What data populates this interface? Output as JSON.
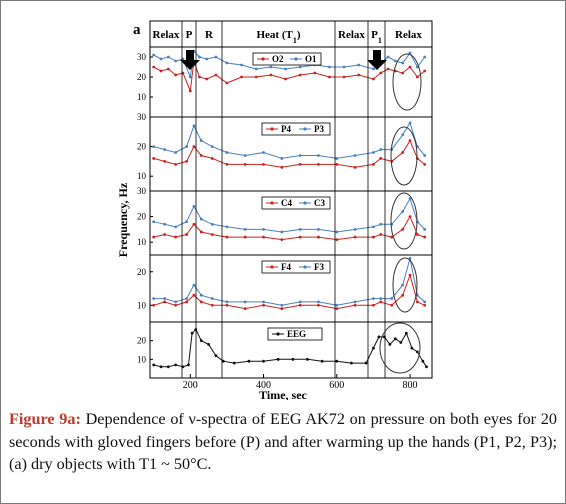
{
  "figure_label": "a",
  "phases": [
    {
      "label": "Relax",
      "sub": ""
    },
    {
      "label": "P",
      "sub": ""
    },
    {
      "label": "R",
      "sub": ""
    },
    {
      "label": "Heat (T",
      "sub": "1",
      "after": ")"
    },
    {
      "label": "Relax",
      "sub": ""
    },
    {
      "label": "P",
      "sub": "1"
    },
    {
      "label": "Relax",
      "sub": ""
    }
  ],
  "ylabel": "Frequency, Hz",
  "xlabel": "Time, sec",
  "x_ticks": [
    "200",
    "400",
    "600",
    "800"
  ],
  "caption": {
    "label": "Figure 9a:",
    "text": " Dependence of ν-spectra of EEG AK72 on pressure on both eyes for 20 seconds with gloved fingers before (P) and after warming up the hands (P1, P2, P3); (a) dry objects with T1 ~ 50°C."
  },
  "colors": {
    "red": "#cc2222",
    "blue": "#4a80c0",
    "black": "#111111"
  },
  "chart_data": [
    {
      "type": "line",
      "panel": 1,
      "x_range": [
        90,
        860
      ],
      "ylim": [
        0,
        35
      ],
      "y_ticks": [
        "10",
        "20",
        "30"
      ],
      "series": [
        {
          "name": "O2",
          "color": "red",
          "x": [
            100,
            120,
            140,
            160,
            180,
            200,
            210,
            225,
            245,
            270,
            300,
            340,
            380,
            420,
            460,
            500,
            540,
            580,
            620,
            660,
            700,
            720,
            740,
            760,
            780,
            800,
            820,
            840
          ],
          "y": [
            25,
            23,
            24,
            21,
            22,
            13,
            28,
            20,
            19,
            21,
            17,
            20,
            20,
            21,
            19,
            21,
            22,
            20,
            20,
            21,
            19,
            22,
            24,
            23,
            22,
            25,
            20,
            23
          ]
        },
        {
          "name": "O1",
          "color": "blue",
          "x": [
            100,
            120,
            140,
            160,
            180,
            200,
            210,
            225,
            245,
            270,
            300,
            340,
            380,
            420,
            460,
            500,
            540,
            580,
            620,
            660,
            700,
            720,
            740,
            760,
            780,
            800,
            820,
            840
          ],
          "y": [
            31,
            29,
            30,
            28,
            29,
            20,
            33,
            30,
            29,
            30,
            27,
            26,
            24,
            25,
            24,
            25,
            26,
            25,
            25,
            26,
            24,
            27,
            30,
            28,
            27,
            32,
            25,
            30
          ]
        }
      ]
    },
    {
      "type": "line",
      "panel": 2,
      "x_range": [
        90,
        860
      ],
      "ylim": [
        5,
        30
      ],
      "y_ticks": [
        "10",
        "20",
        "30"
      ],
      "series": [
        {
          "name": "P4",
          "color": "red",
          "x": [
            100,
            130,
            160,
            190,
            210,
            230,
            260,
            300,
            350,
            400,
            450,
            500,
            550,
            600,
            650,
            700,
            720,
            750,
            780,
            800,
            820,
            840
          ],
          "y": [
            16,
            15,
            14,
            15,
            20,
            17,
            16,
            14,
            14,
            14,
            13,
            14,
            14,
            14,
            13,
            14,
            16,
            15,
            18,
            22,
            16,
            14
          ]
        },
        {
          "name": "P3",
          "color": "blue",
          "x": [
            100,
            130,
            160,
            190,
            210,
            230,
            260,
            300,
            350,
            400,
            450,
            500,
            550,
            600,
            650,
            700,
            720,
            750,
            780,
            800,
            820,
            840
          ],
          "y": [
            20,
            19,
            18,
            20,
            27,
            22,
            20,
            18,
            17,
            18,
            16,
            17,
            17,
            16,
            17,
            18,
            19,
            19,
            24,
            28,
            20,
            17
          ]
        }
      ]
    },
    {
      "type": "line",
      "panel": 3,
      "x_range": [
        90,
        860
      ],
      "ylim": [
        5,
        30
      ],
      "y_ticks": [
        "10",
        "20",
        "30"
      ],
      "series": [
        {
          "name": "C4",
          "color": "red",
          "x": [
            100,
            130,
            160,
            190,
            210,
            230,
            260,
            300,
            350,
            400,
            450,
            500,
            550,
            600,
            650,
            700,
            720,
            750,
            780,
            800,
            820,
            840
          ],
          "y": [
            12,
            13,
            12,
            13,
            17,
            14,
            13,
            12,
            12,
            12,
            11,
            12,
            12,
            11,
            12,
            12,
            13,
            12,
            15,
            20,
            13,
            12
          ]
        },
        {
          "name": "C3",
          "color": "blue",
          "x": [
            100,
            130,
            160,
            190,
            210,
            230,
            260,
            300,
            350,
            400,
            450,
            500,
            550,
            600,
            650,
            700,
            720,
            750,
            780,
            800,
            820,
            840
          ],
          "y": [
            18,
            17,
            16,
            18,
            24,
            19,
            17,
            16,
            15,
            15,
            14,
            15,
            15,
            14,
            15,
            16,
            17,
            17,
            22,
            27,
            18,
            15
          ]
        }
      ]
    },
    {
      "type": "line",
      "panel": 4,
      "x_range": [
        90,
        860
      ],
      "ylim": [
        5,
        25
      ],
      "y_ticks": [
        "10",
        "20"
      ],
      "series": [
        {
          "name": "F4",
          "color": "red",
          "x": [
            100,
            130,
            160,
            190,
            210,
            230,
            260,
            300,
            350,
            400,
            450,
            500,
            550,
            600,
            650,
            700,
            720,
            750,
            780,
            800,
            820,
            840
          ],
          "y": [
            10,
            11,
            10,
            11,
            13,
            11,
            10,
            10,
            9,
            10,
            9,
            10,
            10,
            9,
            10,
            10,
            11,
            10,
            13,
            19,
            11,
            10
          ]
        },
        {
          "name": "F3",
          "color": "blue",
          "x": [
            100,
            130,
            160,
            190,
            210,
            230,
            260,
            300,
            350,
            400,
            450,
            500,
            550,
            600,
            650,
            700,
            720,
            750,
            780,
            800,
            820,
            840
          ],
          "y": [
            12,
            12,
            11,
            12,
            16,
            13,
            12,
            11,
            11,
            11,
            10,
            11,
            11,
            10,
            11,
            12,
            12,
            12,
            16,
            24,
            13,
            11
          ]
        }
      ]
    },
    {
      "type": "line",
      "panel": 5,
      "x_range": [
        90,
        860
      ],
      "xlim": [
        90,
        860
      ],
      "ylim": [
        0,
        30
      ],
      "y_ticks": [
        "10",
        "20"
      ],
      "series": [
        {
          "name": "EEG",
          "color": "black",
          "x": [
            100,
            120,
            140,
            160,
            180,
            195,
            205,
            215,
            230,
            250,
            270,
            290,
            320,
            360,
            400,
            440,
            480,
            520,
            560,
            600,
            640,
            680,
            700,
            715,
            730,
            745,
            760,
            775,
            790,
            805,
            820,
            835,
            845
          ],
          "y": [
            7,
            6,
            6,
            7,
            6,
            7,
            24,
            26,
            20,
            18,
            12,
            9,
            8,
            9,
            9,
            10,
            10,
            10,
            9,
            9,
            8,
            8,
            16,
            22,
            22,
            18,
            21,
            19,
            24,
            16,
            14,
            9,
            6
          ]
        }
      ]
    }
  ]
}
